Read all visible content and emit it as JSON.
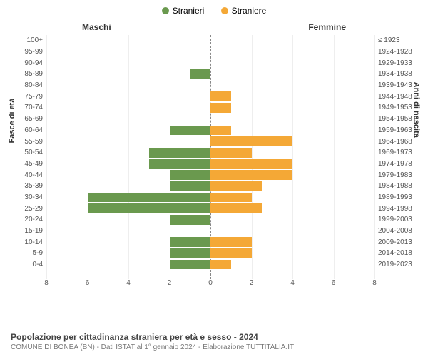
{
  "legend": {
    "male": {
      "label": "Stranieri",
      "color": "#6a994e"
    },
    "female": {
      "label": "Straniere",
      "color": "#f4a836"
    }
  },
  "section_headers": {
    "left": "Maschi",
    "right": "Femmine"
  },
  "axis_titles": {
    "left": "Fasce di età",
    "right": "Anni di nascita"
  },
  "chart": {
    "type": "population-pyramid",
    "xlim": 8,
    "xtick_step": 2,
    "xticks_left": [
      8,
      6,
      4,
      2,
      0
    ],
    "xticks_right": [
      2,
      4,
      6,
      8
    ],
    "bar_colors": {
      "male": "#6a994e",
      "female": "#f4a836"
    },
    "background_color": "#ffffff",
    "grid_color": "#eeeeee",
    "rows": [
      {
        "age": "100+",
        "birth": "≤ 1923",
        "male": 0,
        "female": 0
      },
      {
        "age": "95-99",
        "birth": "1924-1928",
        "male": 0,
        "female": 0
      },
      {
        "age": "90-94",
        "birth": "1929-1933",
        "male": 0,
        "female": 0
      },
      {
        "age": "85-89",
        "birth": "1934-1938",
        "male": 1,
        "female": 0
      },
      {
        "age": "80-84",
        "birth": "1939-1943",
        "male": 0,
        "female": 0
      },
      {
        "age": "75-79",
        "birth": "1944-1948",
        "male": 0,
        "female": 1
      },
      {
        "age": "70-74",
        "birth": "1949-1953",
        "male": 0,
        "female": 1
      },
      {
        "age": "65-69",
        "birth": "1954-1958",
        "male": 0,
        "female": 0
      },
      {
        "age": "60-64",
        "birth": "1959-1963",
        "male": 2,
        "female": 1
      },
      {
        "age": "55-59",
        "birth": "1964-1968",
        "male": 0,
        "female": 4
      },
      {
        "age": "50-54",
        "birth": "1969-1973",
        "male": 3,
        "female": 2
      },
      {
        "age": "45-49",
        "birth": "1974-1978",
        "male": 3,
        "female": 4
      },
      {
        "age": "40-44",
        "birth": "1979-1983",
        "male": 2,
        "female": 4
      },
      {
        "age": "35-39",
        "birth": "1984-1988",
        "male": 2,
        "female": 2.5
      },
      {
        "age": "30-34",
        "birth": "1989-1993",
        "male": 6,
        "female": 2
      },
      {
        "age": "25-29",
        "birth": "1994-1998",
        "male": 6,
        "female": 2.5
      },
      {
        "age": "20-24",
        "birth": "1999-2003",
        "male": 2,
        "female": 0
      },
      {
        "age": "15-19",
        "birth": "2004-2008",
        "male": 0,
        "female": 0
      },
      {
        "age": "10-14",
        "birth": "2009-2013",
        "male": 2,
        "female": 2
      },
      {
        "age": "5-9",
        "birth": "2014-2018",
        "male": 2,
        "female": 2
      },
      {
        "age": "0-4",
        "birth": "2019-2023",
        "male": 2,
        "female": 1
      }
    ]
  },
  "footer": {
    "title": "Popolazione per cittadinanza straniera per età e sesso - 2024",
    "subtitle": "COMUNE DI BONEA (BN) - Dati ISTAT al 1° gennaio 2024 - Elaborazione TUTTITALIA.IT"
  }
}
